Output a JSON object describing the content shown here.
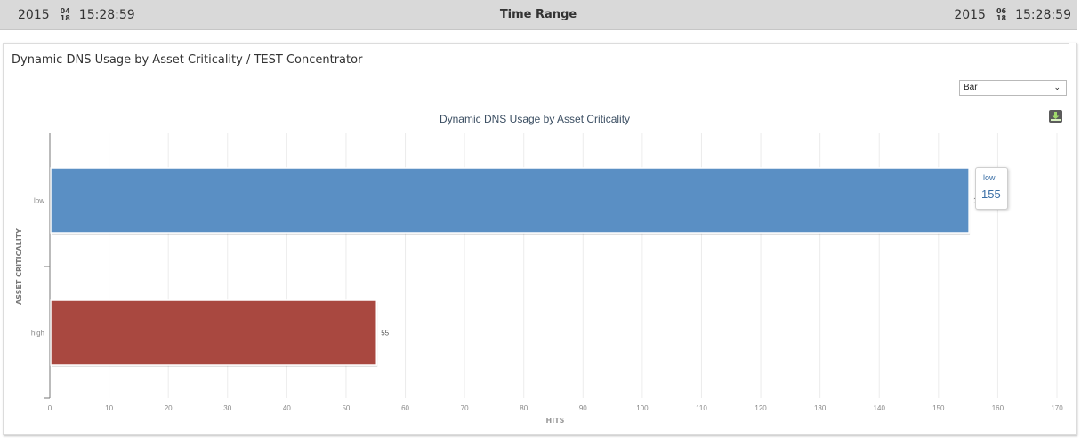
{
  "time_range": {
    "label": "Time Range",
    "start": {
      "year": "2015",
      "month": "04",
      "day": "18",
      "time": "15:28:59"
    },
    "end": {
      "year": "2015",
      "month": "06",
      "day": "18",
      "time": "15:28:59"
    }
  },
  "panel": {
    "title": "Dynamic DNS Usage by Asset Criticality / TEST Concentrator",
    "chart_type_select": {
      "value": "Bar"
    }
  },
  "tooltip": {
    "name": "low",
    "value": "155"
  },
  "colors": {
    "low": "#5a8fc4",
    "high": "#a94840"
  },
  "icons": {
    "download": "download-icon",
    "select": "chevron-down-icon"
  },
  "chart_data": {
    "type": "bar",
    "orientation": "horizontal",
    "title": "Dynamic DNS Usage by Asset Criticality",
    "ylabel": "ASSET CRITICALITY",
    "xlabel": "HITS",
    "categories": [
      "low",
      "high"
    ],
    "values": [
      155,
      55
    ],
    "value_labels": [
      "155",
      "55"
    ],
    "xlim": [
      0,
      170
    ],
    "xticks": [
      0,
      10,
      20,
      30,
      40,
      50,
      60,
      70,
      80,
      90,
      100,
      110,
      120,
      130,
      140,
      150,
      160,
      170
    ],
    "grid": true,
    "legend": "none"
  }
}
